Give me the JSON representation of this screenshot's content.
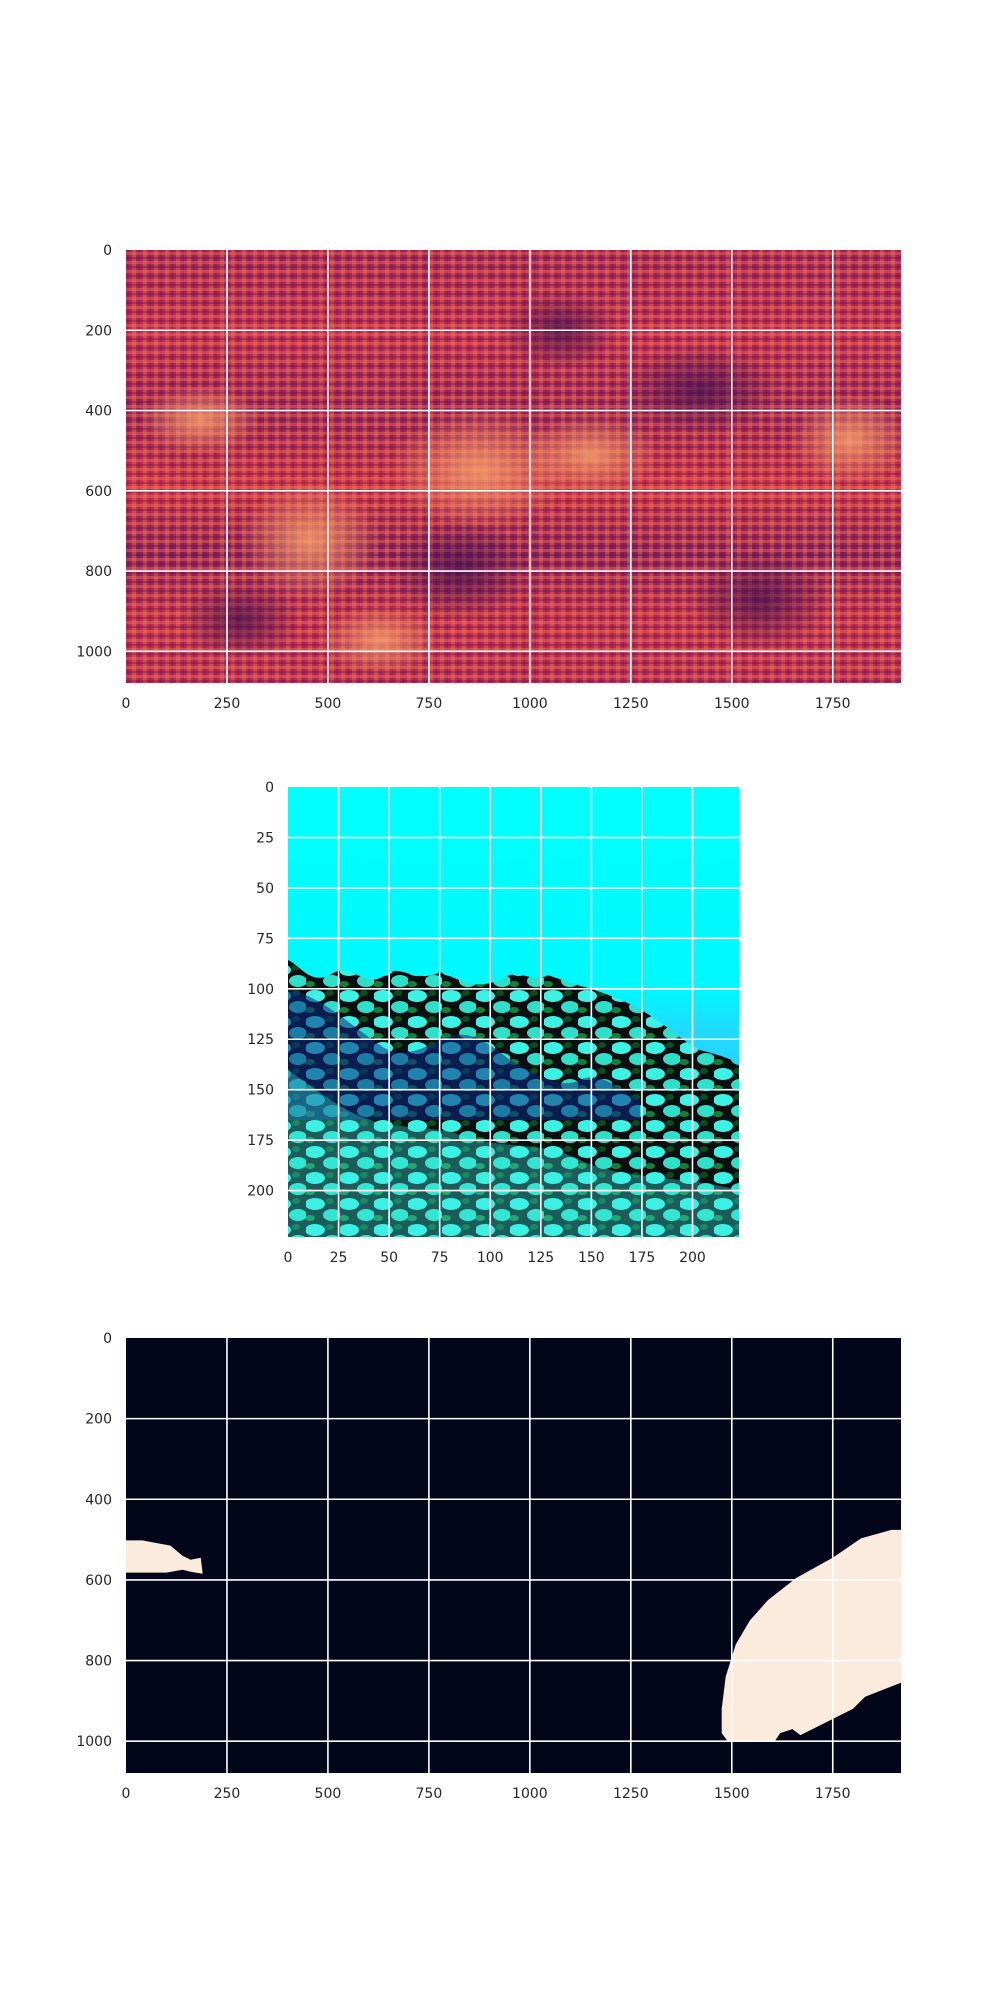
{
  "chart_data": [
    {
      "type": "heatmap",
      "title": "",
      "xlabel": "",
      "ylabel": "",
      "colormap": "rocket",
      "colors": [
        "#3b0f4f",
        "#6c1d5c",
        "#a72356",
        "#d6304a",
        "#ef5a3c",
        "#f7a06c"
      ],
      "grid": true,
      "xlim": [
        0,
        1919
      ],
      "ylim": [
        1079,
        0
      ],
      "x_ticks": [
        0,
        250,
        500,
        750,
        1000,
        1250,
        1500,
        1750
      ],
      "y_ticks": [
        0,
        200,
        400,
        600,
        800,
        1000
      ],
      "x_tick_labels": [
        "0",
        "250",
        "500",
        "750",
        "1000",
        "1250",
        "1500",
        "1750"
      ],
      "y_tick_labels": [
        "0",
        "200",
        "400",
        "600",
        "800",
        "1000"
      ]
    },
    {
      "type": "heatmap",
      "title": "",
      "xlabel": "",
      "ylabel": "",
      "content": "underwater image (cyan water above, coral reef below)",
      "colors": [
        "#00ffff",
        "#0a2a8a",
        "#3bf0e6",
        "#0c3a10",
        "#000000"
      ],
      "grid": true,
      "xlim": [
        0,
        223
      ],
      "ylim": [
        223,
        0
      ],
      "x_ticks": [
        0,
        25,
        50,
        75,
        100,
        125,
        150,
        175,
        200
      ],
      "y_ticks": [
        0,
        25,
        50,
        75,
        100,
        125,
        150,
        175,
        200
      ],
      "x_tick_labels": [
        "0",
        "25",
        "50",
        "75",
        "100",
        "125",
        "150",
        "175",
        "200"
      ],
      "y_tick_labels": [
        "0",
        "25",
        "50",
        "75",
        "100",
        "125",
        "150",
        "175",
        "200"
      ]
    },
    {
      "type": "heatmap",
      "title": "",
      "xlabel": "",
      "ylabel": "",
      "content": "binary segmentation mask",
      "colors": [
        "#03051a",
        "#faebdd"
      ],
      "grid": true,
      "xlim": [
        0,
        1919
      ],
      "ylim": [
        1079,
        0
      ],
      "x_ticks": [
        0,
        250,
        500,
        750,
        1000,
        1250,
        1500,
        1750
      ],
      "y_ticks": [
        0,
        200,
        400,
        600,
        800,
        1000
      ],
      "x_tick_labels": [
        "0",
        "250",
        "500",
        "750",
        "1000",
        "1250",
        "1500",
        "1750"
      ],
      "y_tick_labels": [
        "0",
        "200",
        "400",
        "600",
        "800",
        "1000"
      ],
      "regions": [
        {
          "label": "mask-region-left",
          "polygon": [
            [
              0,
              502
            ],
            [
              40,
              502
            ],
            [
              110,
              515
            ],
            [
              140,
              540
            ],
            [
              160,
              550
            ],
            [
              185,
              545
            ],
            [
              190,
              585
            ],
            [
              160,
              580
            ],
            [
              140,
              575
            ],
            [
              100,
              582
            ],
            [
              0,
              582
            ]
          ]
        },
        {
          "label": "mask-region-right",
          "polygon": [
            [
              1919,
              476
            ],
            [
              1895,
              476
            ],
            [
              1820,
              497
            ],
            [
              1750,
              545
            ],
            [
              1660,
              595
            ],
            [
              1590,
              650
            ],
            [
              1545,
              700
            ],
            [
              1510,
              760
            ],
            [
              1485,
              840
            ],
            [
              1475,
              920
            ],
            [
              1475,
              980
            ],
            [
              1490,
              1000
            ],
            [
              1530,
              1002
            ],
            [
              1605,
              1002
            ],
            [
              1620,
              980
            ],
            [
              1650,
              970
            ],
            [
              1670,
              985
            ],
            [
              1690,
              975
            ],
            [
              1740,
              950
            ],
            [
              1780,
              930
            ],
            [
              1800,
              920
            ],
            [
              1830,
              890
            ],
            [
              1919,
              855
            ]
          ]
        }
      ]
    }
  ]
}
